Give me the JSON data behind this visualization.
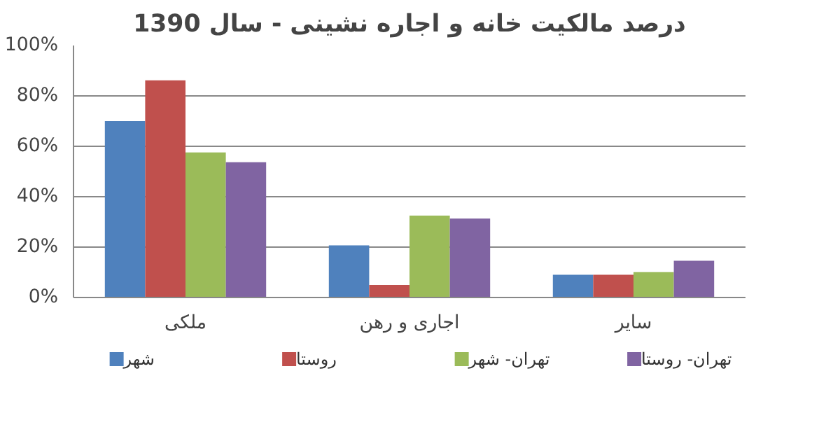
{
  "chart_data": {
    "type": "bar",
    "title": "درصد مالکیت خانه و اجاره نشینی - سال 1390",
    "categories": [
      "ملکی",
      "اجاری و رهن",
      "سایر"
    ],
    "series": [
      {
        "name": "شهر",
        "color": "#4f81bd",
        "values": [
          70.0,
          20.7,
          9.0
        ]
      },
      {
        "name": "روستا",
        "color": "#c0504d",
        "values": [
          86.2,
          5.0,
          9.0
        ]
      },
      {
        "name": "تهران- شهر",
        "color": "#9bbb59",
        "values": [
          57.6,
          32.5,
          10.1
        ]
      },
      {
        "name": "تهران- روستا",
        "color": "#8064a2",
        "values": [
          53.7,
          31.3,
          14.6
        ]
      }
    ],
    "ylim": [
      0,
      100
    ],
    "yticks": [
      {
        "value": 0,
        "label": "0%"
      },
      {
        "value": 20,
        "label": "20%"
      },
      {
        "value": 40,
        "label": "40%"
      },
      {
        "value": 60,
        "label": "60%"
      },
      {
        "value": 80,
        "label": "80%"
      },
      {
        "value": 100,
        "label": "100%"
      }
    ],
    "grid": "y",
    "legend": "bottom"
  }
}
